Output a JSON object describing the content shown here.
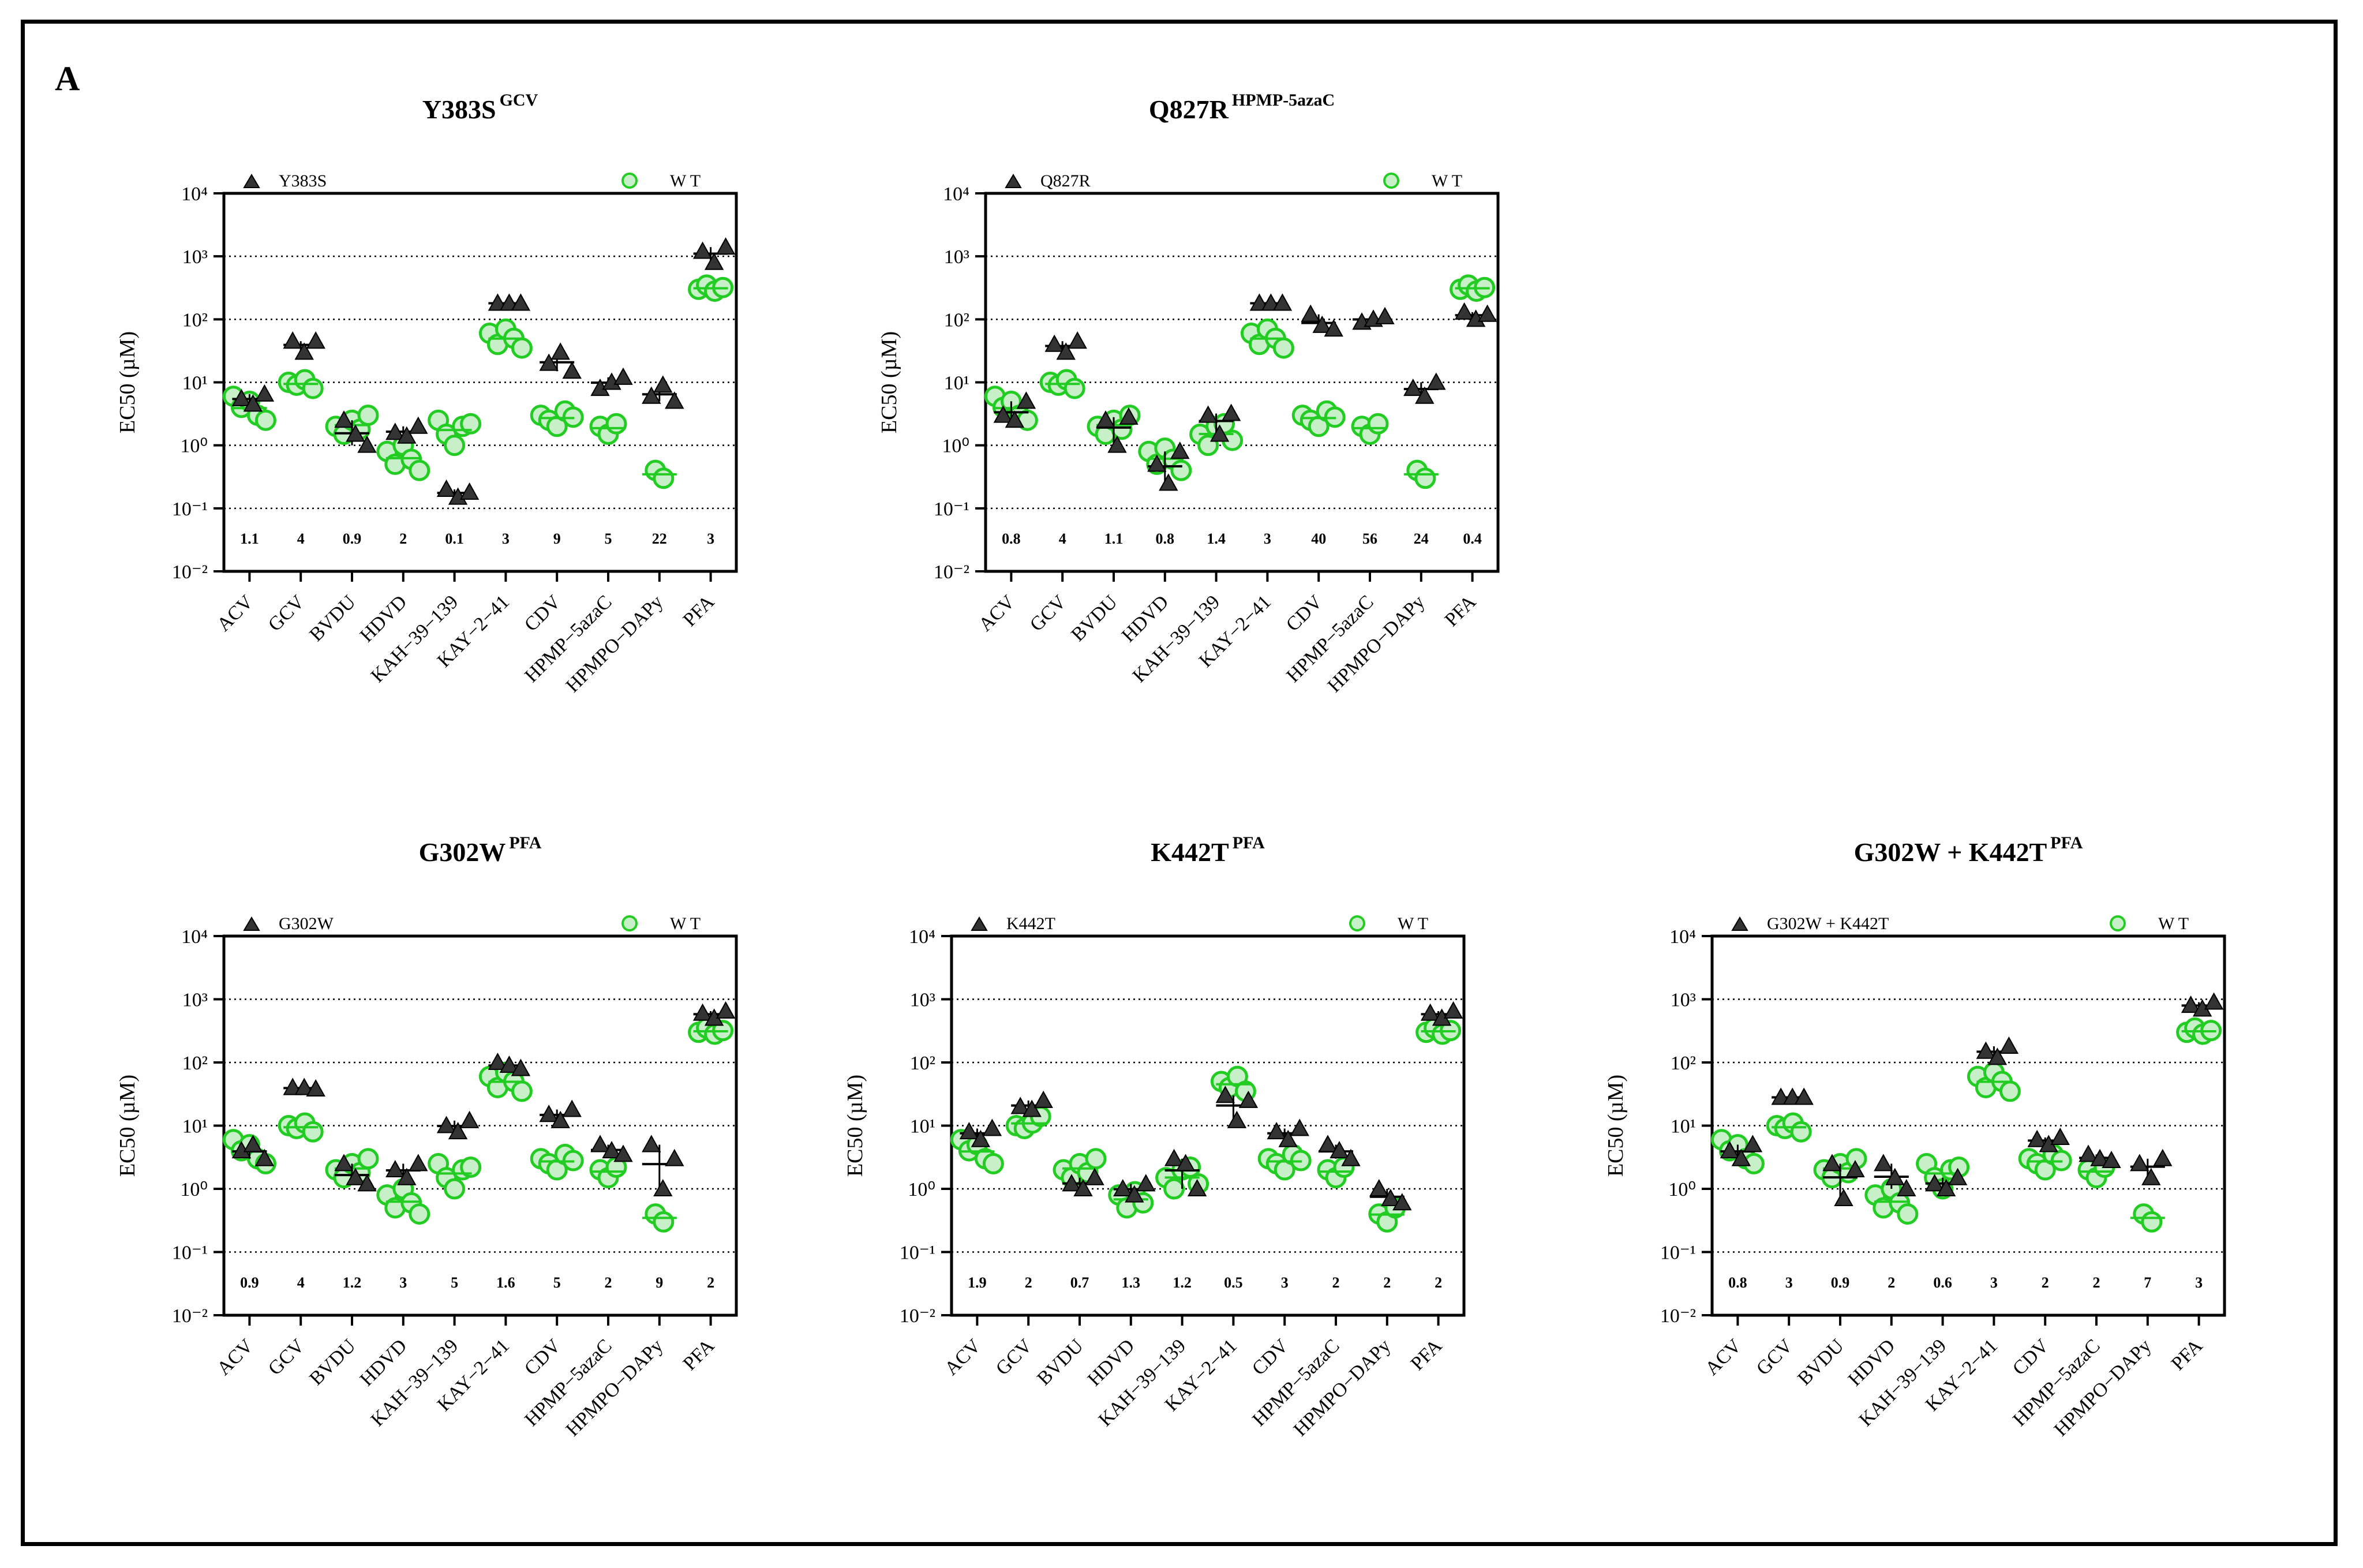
{
  "panel_label": "A",
  "colors": {
    "mutant": "#333333",
    "wt": "#22cc22",
    "wt_fill": "#c8f0c8",
    "wt_teal": "#20c080"
  },
  "y_axis_label": "EC50 (µM)",
  "y_ticks": [
    "10⁻²",
    "10⁻¹",
    "10⁰",
    "10¹",
    "10²",
    "10³",
    "10⁴"
  ],
  "chart_data": [
    {
      "type": "scatter",
      "title": "Y383S",
      "title_sup": "GCV",
      "mutant_legend": "Y383S",
      "wt_legend": "W T",
      "ylim_log10": [
        -2,
        4
      ],
      "gridlines_log10": [
        -1,
        0,
        1,
        2,
        3
      ],
      "categories": [
        "ACV",
        "GCV",
        "BVDU",
        "HDVD",
        "KAH−39−139",
        "KAY−2−41",
        "CDV",
        "HPMP−5azaC",
        "HPMPO−DAPy",
        "PFA"
      ],
      "fold_labels": [
        "1.1",
        "4",
        "0.9",
        "2",
        "0.1",
        "3",
        "9",
        "5",
        "22",
        "3"
      ],
      "series": [
        {
          "name": "Y383S",
          "values": [
            [
              5.5,
              4.5,
              6.5
            ],
            [
              45,
              30,
              45
            ],
            [
              2.5,
              1.5,
              1.0
            ],
            [
              1.6,
              1.4,
              2.0
            ],
            [
              0.2,
              0.15,
              0.18
            ],
            [
              180,
              180,
              180
            ],
            [
              20,
              30,
              15
            ],
            [
              8,
              10,
              12
            ],
            [
              6,
              9,
              5
            ],
            [
              1200,
              800,
              1400
            ]
          ]
        },
        {
          "name": "WT",
          "values": [
            [
              6,
              4,
              5,
              3,
              2.5
            ],
            [
              10,
              9,
              11,
              8
            ],
            [
              2,
              1.5,
              2.5,
              1.8,
              3
            ],
            [
              0.8,
              0.5,
              1,
              0.6,
              0.4
            ],
            [
              2.5,
              1.5,
              1,
              2,
              2.2
            ],
            [
              60,
              40,
              70,
              50,
              35
            ],
            [
              3,
              2.5,
              2,
              3.5,
              2.8
            ],
            [
              2,
              1.5,
              2.2
            ],
            [
              0.4,
              0.3
            ],
            [
              300,
              350,
              280,
              320
            ]
          ]
        }
      ]
    },
    {
      "type": "scatter",
      "title": "Q827R",
      "title_sup": "HPMP-5azaC",
      "mutant_legend": "Q827R",
      "wt_legend": "W T",
      "ylim_log10": [
        -2,
        4
      ],
      "gridlines_log10": [
        -1,
        0,
        1,
        2,
        3
      ],
      "categories": [
        "ACV",
        "GCV",
        "BVDU",
        "HDVD",
        "KAH−39−139",
        "KAY−2−41",
        "CDV",
        "HPMP−5azaC",
        "HPMPO−DAPy",
        "PFA"
      ],
      "fold_labels": [
        "0.8",
        "4",
        "1.1",
        "0.8",
        "1.4",
        "3",
        "40",
        "56",
        "24",
        "0.4"
      ],
      "series": [
        {
          "name": "Q827R",
          "values": [
            [
              3,
              2.5,
              5
            ],
            [
              40,
              30,
              45
            ],
            [
              2.5,
              1.0,
              2.8
            ],
            [
              0.5,
              0.25,
              0.8
            ],
            [
              3,
              1.5,
              3.2
            ],
            [
              180,
              180,
              180
            ],
            [
              120,
              80,
              70
            ],
            [
              90,
              100,
              110
            ],
            [
              8,
              6,
              10
            ],
            [
              130,
              100,
              120
            ]
          ]
        },
        {
          "name": "WT",
          "values": [
            [
              6,
              4,
              5,
              3,
              2.5
            ],
            [
              10,
              9,
              11,
              8
            ],
            [
              2,
              1.5,
              2.5,
              1.8,
              3
            ],
            [
              0.8,
              0.5,
              0.9,
              0.6,
              0.4
            ],
            [
              1.5,
              1.0,
              2.0,
              2.2,
              1.2
            ],
            [
              60,
              40,
              70,
              50,
              35
            ],
            [
              3,
              2.5,
              2,
              3.5,
              2.8
            ],
            [
              2,
              1.5,
              2.2
            ],
            [
              0.4,
              0.3
            ],
            [
              300,
              350,
              280,
              320
            ]
          ]
        }
      ]
    },
    {
      "type": "scatter",
      "title": "G302W",
      "title_sup": "PFA",
      "mutant_legend": "G302W",
      "wt_legend": "W T",
      "ylim_log10": [
        -2,
        4
      ],
      "gridlines_log10": [
        -1,
        0,
        1,
        2,
        3
      ],
      "categories": [
        "ACV",
        "GCV",
        "BVDU",
        "HDVD",
        "KAH−39−139",
        "KAY−2−41",
        "CDV",
        "HPMP−5azaC",
        "HPMPO−DAPy",
        "PFA"
      ],
      "fold_labels": [
        "0.9",
        "4",
        "1.2",
        "3",
        "5",
        "1.6",
        "5",
        "2",
        "9",
        "2"
      ],
      "series": [
        {
          "name": "G302W",
          "values": [
            [
              4,
              5,
              3
            ],
            [
              40,
              40,
              38
            ],
            [
              2.5,
              1.5,
              1.2
            ],
            [
              2,
              1.5,
              2.5
            ],
            [
              10,
              8,
              12
            ],
            [
              100,
              90,
              80
            ],
            [
              15,
              12,
              18
            ],
            [
              5,
              4,
              3.5
            ],
            [
              5,
              1,
              3
            ],
            [
              600,
              500,
              650
            ]
          ]
        },
        {
          "name": "WT",
          "values": [
            [
              6,
              4,
              5,
              3,
              2.5
            ],
            [
              10,
              9,
              11,
              8
            ],
            [
              2,
              1.5,
              2.5,
              1.8,
              3
            ],
            [
              0.8,
              0.5,
              1,
              0.6,
              0.4
            ],
            [
              2.5,
              1.5,
              1,
              2,
              2.2
            ],
            [
              60,
              40,
              70,
              50,
              35
            ],
            [
              3,
              2.5,
              2,
              3.5,
              2.8
            ],
            [
              2,
              1.5,
              2.2
            ],
            [
              0.4,
              0.3
            ],
            [
              300,
              350,
              280,
              320
            ]
          ]
        }
      ]
    },
    {
      "type": "scatter",
      "title": "K442T",
      "title_sup": "PFA",
      "mutant_legend": "K442T",
      "wt_legend": "W T",
      "ylim_log10": [
        -2,
        4
      ],
      "gridlines_log10": [
        -1,
        0,
        1,
        2,
        3
      ],
      "categories": [
        "ACV",
        "GCV",
        "BVDU",
        "HDVD",
        "KAH−39−139",
        "KAY−2−41",
        "CDV",
        "HPMP−5azaC",
        "HPMPO−DAPy",
        "PFA"
      ],
      "fold_labels": [
        "1.9",
        "2",
        "0.7",
        "1.3",
        "1.2",
        "0.5",
        "3",
        "2",
        "2",
        "2"
      ],
      "series": [
        {
          "name": "K442T",
          "values": [
            [
              8,
              6,
              9
            ],
            [
              20,
              18,
              25
            ],
            [
              1.2,
              1.0,
              1.5
            ],
            [
              1.0,
              0.8,
              1.2
            ],
            [
              3,
              2.5,
              1.0
            ],
            [
              30,
              12,
              25
            ],
            [
              8,
              6,
              9
            ],
            [
              5,
              4,
              3
            ],
            [
              1.0,
              0.7,
              0.6
            ],
            [
              600,
              500,
              650
            ]
          ]
        },
        {
          "name": "WT",
          "values": [
            [
              6,
              4,
              5,
              3,
              2.5
            ],
            [
              10,
              9,
              11,
              14
            ],
            [
              2,
              1.5,
              2.5,
              1.8,
              3
            ],
            [
              0.8,
              0.5,
              0.9,
              0.6
            ],
            [
              1.5,
              1.0,
              2.0,
              2.2,
              1.2
            ],
            [
              50,
              40,
              60,
              35
            ],
            [
              3,
              2.5,
              2,
              3.5,
              2.8
            ],
            [
              2,
              1.5,
              2.2
            ],
            [
              0.4,
              0.3,
              0.5
            ],
            [
              300,
              350,
              280,
              320
            ]
          ]
        }
      ]
    },
    {
      "type": "scatter",
      "title": "G302W + K442T",
      "title_sup": "PFA",
      "mutant_legend": "G302W + K442T",
      "wt_legend": "W T",
      "ylim_log10": [
        -2,
        4
      ],
      "gridlines_log10": [
        -1,
        0,
        1,
        2,
        3
      ],
      "categories": [
        "ACV",
        "GCV",
        "BVDU",
        "HDVD",
        "KAH−39−139",
        "KAY−2−41",
        "CDV",
        "HPMP−5azaC",
        "HPMPO−DAPy",
        "PFA"
      ],
      "fold_labels": [
        "0.8",
        "3",
        "0.9",
        "2",
        "0.6",
        "3",
        "2",
        "2",
        "7",
        "3"
      ],
      "series": [
        {
          "name": "G302W + K442T",
          "values": [
            [
              4,
              3,
              5
            ],
            [
              28,
              28,
              28
            ],
            [
              2.5,
              0.7,
              2.0
            ],
            [
              2.5,
              1.5,
              1.0
            ],
            [
              1.2,
              1.0,
              1.5
            ],
            [
              150,
              120,
              180
            ],
            [
              6,
              5,
              6.5
            ],
            [
              3.5,
              3,
              2.8
            ],
            [
              2.5,
              1.5,
              3
            ],
            [
              800,
              700,
              900
            ]
          ]
        },
        {
          "name": "WT",
          "values": [
            [
              6,
              4,
              5,
              3,
              2.5
            ],
            [
              10,
              9,
              11,
              8
            ],
            [
              2,
              1.5,
              2.5,
              1.8,
              3
            ],
            [
              0.8,
              0.5,
              1,
              0.6,
              0.4
            ],
            [
              2.5,
              1.5,
              1,
              2,
              2.2
            ],
            [
              60,
              40,
              70,
              50,
              35
            ],
            [
              3,
              2.5,
              2,
              3.5,
              2.8
            ],
            [
              2,
              1.5,
              2.2
            ],
            [
              0.4,
              0.3
            ],
            [
              300,
              350,
              280,
              320
            ]
          ]
        }
      ]
    }
  ]
}
